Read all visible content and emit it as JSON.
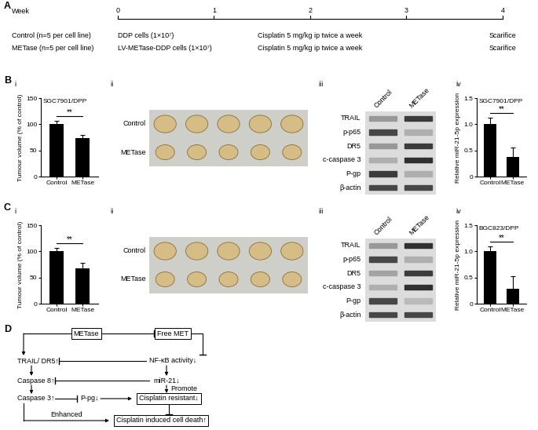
{
  "timeline": {
    "panel_label": "A",
    "axis_label": "Week",
    "weeks": [
      0,
      1,
      2,
      3,
      4
    ],
    "xlim": [
      0,
      4
    ],
    "groups": [
      {
        "name": "Control (n=5 per cell line)",
        "cells": "DDP cells (1×10⁷)",
        "treatment": "Cisplatin 5 mg/kg ip twice a week",
        "end": "Scarifice"
      },
      {
        "name": "METase (n=5 per cell line)",
        "cells": "LV-METase-DDP cells (1×10⁷)",
        "treatment": "Cisplatin 5 mg/kg ip twice a week",
        "end": "Scarifice"
      }
    ]
  },
  "row_labels": [
    "B",
    "C"
  ],
  "chart_data": [
    {
      "type": "bar",
      "panel_label": "i",
      "title": "SGC7901/DPP",
      "y_label": "Tumour volume (% of control)",
      "categories": [
        "Control",
        "METase"
      ],
      "values": [
        100,
        73
      ],
      "errors": [
        6,
        7
      ],
      "color": "#000000",
      "ylim": [
        0,
        150
      ],
      "yticks": [
        0,
        50,
        100,
        150
      ],
      "significance": "**"
    },
    {
      "type": "bar",
      "panel_label": "iv",
      "title": "SGC7901/DPP",
      "y_label": "Relative miR-21-5p expression",
      "categories": [
        "Control",
        "METase"
      ],
      "values": [
        1.0,
        0.38
      ],
      "errors": [
        0.12,
        0.18
      ],
      "color": "#000000",
      "ylim": [
        0,
        1.5
      ],
      "yticks": [
        0,
        0.5,
        {
          "value": 1,
          "label": "1.0"
        },
        1.5
      ],
      "significance": "**"
    },
    {
      "type": "bar",
      "panel_label": "i",
      "y_label": "Tumour volume (% of control)",
      "categories": [
        "Control",
        "METase"
      ],
      "values": [
        100,
        67
      ],
      "errors": [
        6,
        11
      ],
      "color": "#000000",
      "ylim": [
        0,
        150
      ],
      "yticks": [
        0,
        50,
        100,
        150
      ],
      "significance": "**"
    },
    {
      "type": "bar",
      "panel_label": "iv",
      "title": "BGC823/DPP",
      "y_label": "Relative miR-21-5p expression",
      "categories": [
        "Control",
        "METase"
      ],
      "values": [
        1.0,
        0.29
      ],
      "errors": [
        0.1,
        0.24
      ],
      "color": "#000000",
      "ylim": [
        0,
        1.5
      ],
      "yticks": [
        0,
        0.5,
        {
          "value": 1,
          "label": "1.0"
        },
        1.5
      ],
      "significance": "**"
    }
  ],
  "photos": [
    {
      "panel_label": "ii",
      "rows": [
        "Control",
        "METase"
      ],
      "tumours_per_row": 5
    },
    {
      "panel_label": "ii",
      "rows": [
        "Control",
        "METase"
      ],
      "tumours_per_row": 5
    }
  ],
  "blots": [
    {
      "panel_label": "iii",
      "columns": [
        "Control",
        "METase"
      ],
      "rows": [
        {
          "name": "TRAIL",
          "intensity": [
            0.45,
            0.85
          ]
        },
        {
          "name": "p-p65",
          "intensity": [
            0.8,
            0.35
          ]
        },
        {
          "name": "DR5",
          "intensity": [
            0.45,
            0.85
          ]
        },
        {
          "name": "c-caspase 3",
          "intensity": [
            0.35,
            0.9
          ]
        },
        {
          "name": "P-gp",
          "intensity": [
            0.85,
            0.35
          ]
        },
        {
          "name": "β-actin",
          "intensity": [
            0.8,
            0.8
          ]
        }
      ]
    },
    {
      "panel_label": "iii",
      "columns": [
        "Control",
        "METase"
      ],
      "rows": [
        {
          "name": "TRAIL",
          "intensity": [
            0.45,
            0.9
          ]
        },
        {
          "name": "p-p65",
          "intensity": [
            0.8,
            0.35
          ]
        },
        {
          "name": "DR5",
          "intensity": [
            0.4,
            0.85
          ]
        },
        {
          "name": "c-caspase 3",
          "intensity": [
            0.35,
            0.9
          ]
        },
        {
          "name": "P-gp",
          "intensity": [
            0.8,
            0.3
          ]
        },
        {
          "name": "β-actin",
          "intensity": [
            0.8,
            0.8
          ]
        }
      ]
    }
  ],
  "diagram": {
    "panel_label": "D",
    "nodes": [
      "METase",
      "Free MET",
      "TRAIL/ DR5↑",
      "NF-κB activity↓",
      "Caspase 8↑",
      "miR-21↓",
      "Caspase 3↑",
      "P-pg↓",
      "Cisplatin resistant↓",
      "Cisplatin induced cell death↑"
    ],
    "edge_labels": [
      "Promote",
      "Enhanced"
    ]
  }
}
